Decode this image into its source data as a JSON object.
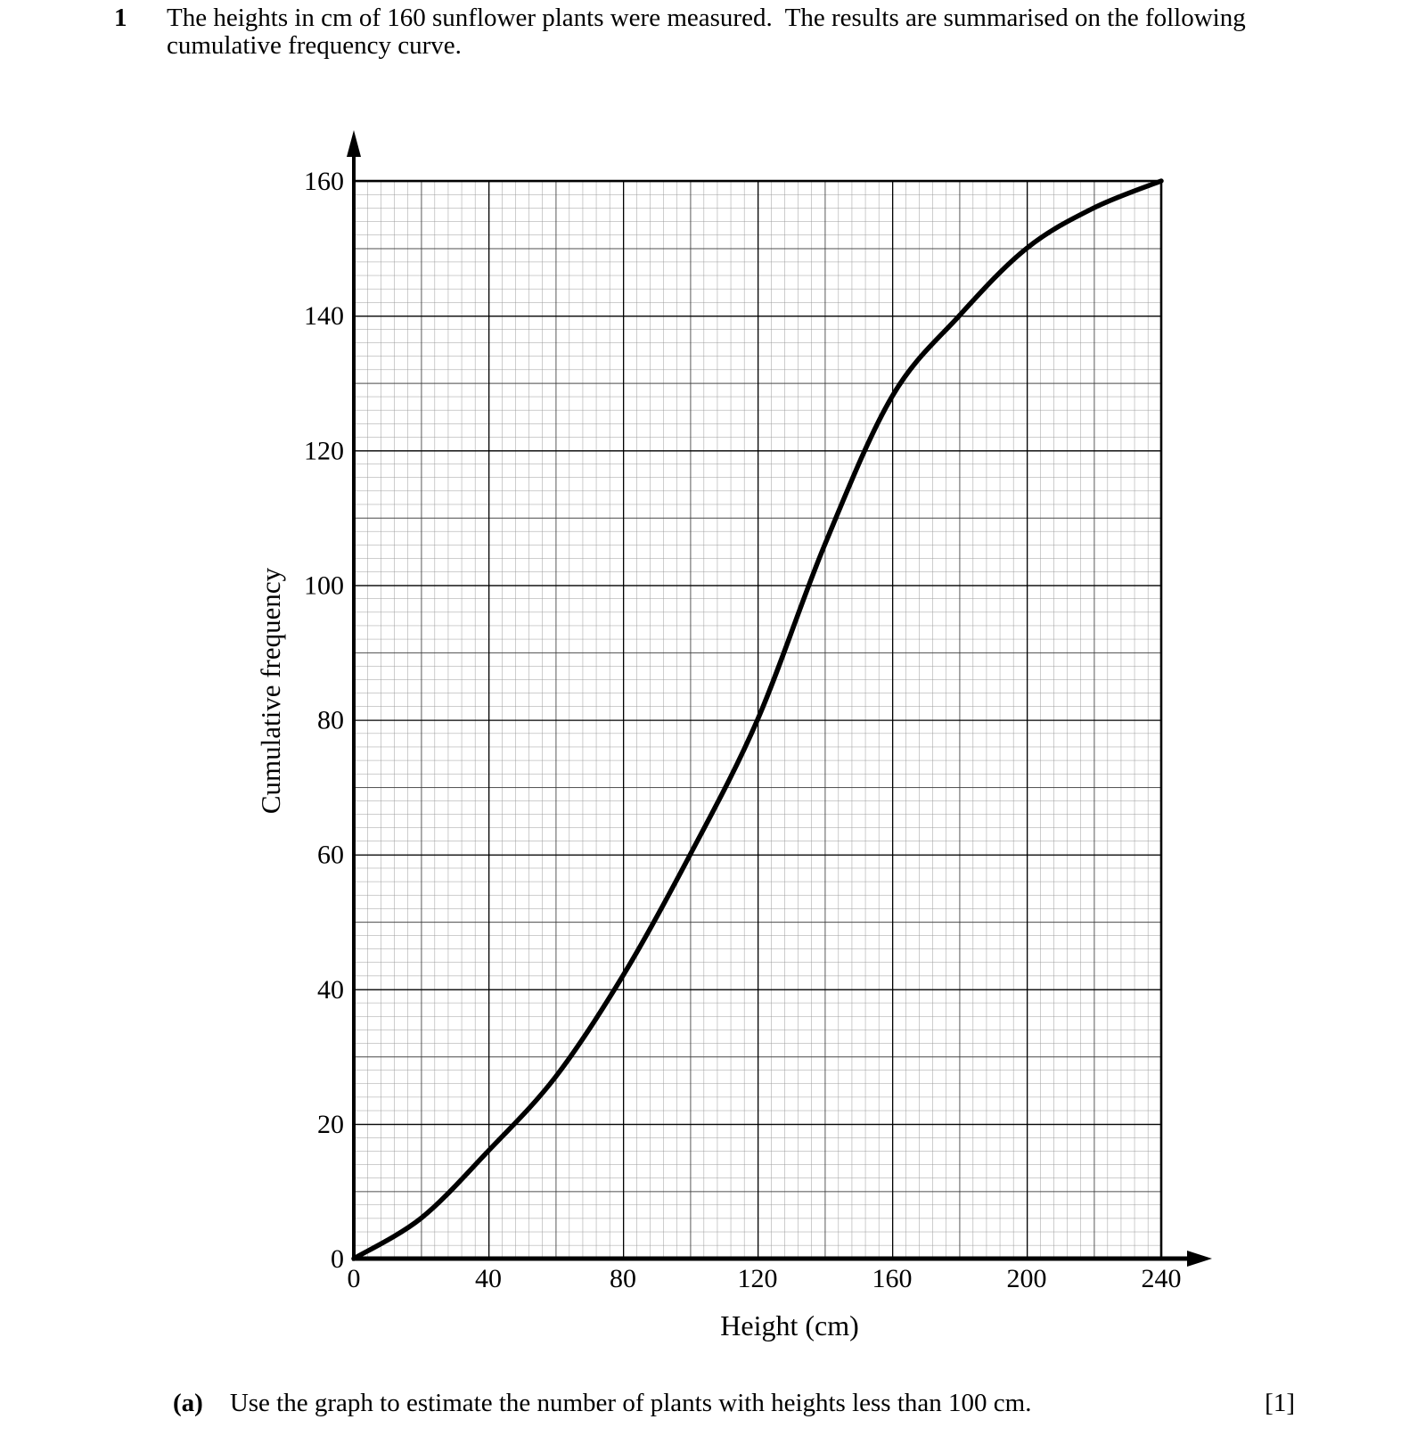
{
  "question": {
    "number": "1",
    "text": "The heights in cm of 160 sunflower plants were measured.  The results are summarised on the following cumulative frequency curve.",
    "part_a": {
      "label": "(a)",
      "text": "Use the graph to estimate the number of plants with heights less than 100 cm.",
      "marks": "[1]"
    }
  },
  "chart_data": {
    "type": "line",
    "title": "",
    "xlabel": "Height (cm)",
    "ylabel": "Cumulative frequency",
    "xlim": [
      0,
      240
    ],
    "ylim": [
      0,
      160
    ],
    "xticks": [
      0,
      40,
      80,
      120,
      160,
      200,
      240
    ],
    "yticks": [
      0,
      20,
      40,
      60,
      80,
      100,
      120,
      140,
      160
    ],
    "grid": {
      "style": "fine graph paper",
      "minor_step_x": 4,
      "minor_step_y": 2,
      "medium_step_x": 20,
      "medium_step_y": 10,
      "major_step_x": 40,
      "major_step_y": 20
    },
    "series": [
      {
        "name": "Cumulative frequency curve",
        "points": [
          [
            0,
            0
          ],
          [
            20,
            6
          ],
          [
            40,
            16
          ],
          [
            60,
            27
          ],
          [
            80,
            42
          ],
          [
            100,
            60
          ],
          [
            120,
            80
          ],
          [
            140,
            106
          ],
          [
            160,
            128
          ],
          [
            180,
            140
          ],
          [
            200,
            150
          ],
          [
            220,
            156
          ],
          [
            240,
            160
          ]
        ]
      }
    ]
  }
}
